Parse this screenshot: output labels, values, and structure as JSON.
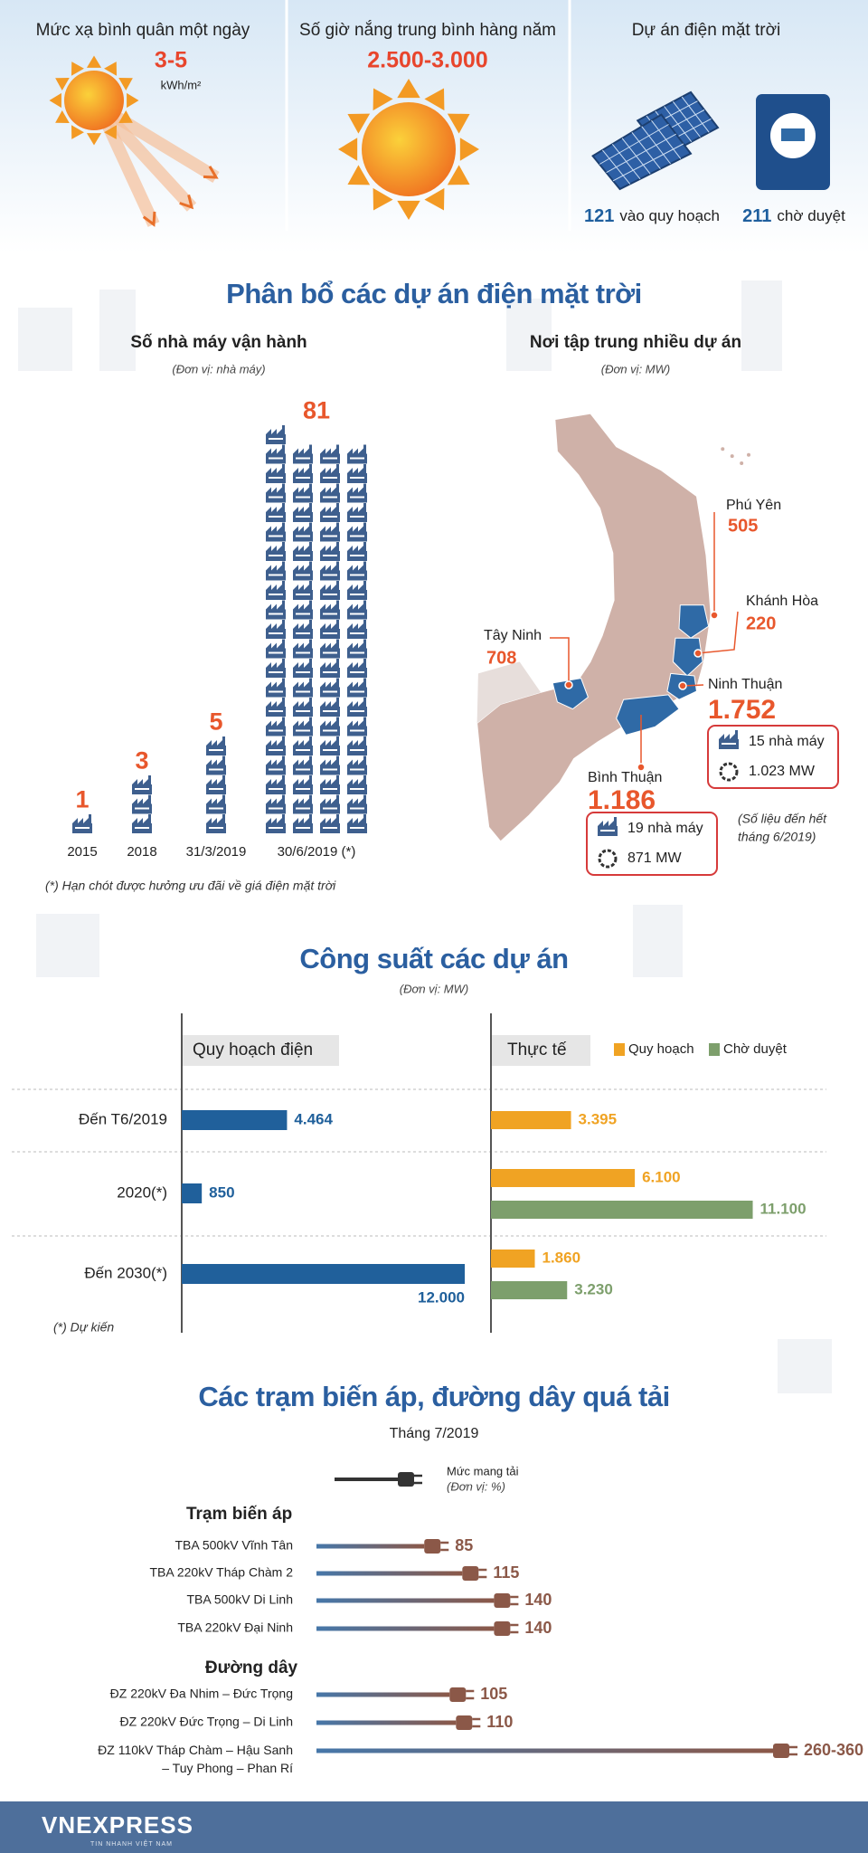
{
  "header": {
    "stats": [
      {
        "label": "Mức xạ bình quân một ngày",
        "value": "3-5",
        "unit": "kWh/m²"
      },
      {
        "label": "Số giờ nắng trung bình hàng năm",
        "value": "2.500-3.000"
      },
      {
        "label": "Dự án điện mặt trời",
        "projects": [
          {
            "count": 121,
            "label": "vào quy hoạch"
          },
          {
            "count": 211,
            "label": "chờ duyệt"
          }
        ]
      }
    ]
  },
  "section1": {
    "title": "Phân bổ các dự án điện mặt trời"
  },
  "map": {
    "title": "Nơi tập trung nhiều dự án",
    "subtitle": "(Đơn vị: MW)",
    "regions": [
      {
        "name": "Phú Yên",
        "value": "505"
      },
      {
        "name": "Khánh Hòa",
        "value": "220"
      },
      {
        "name": "Tây Ninh",
        "value": "708"
      },
      {
        "name": "Ninh Thuận",
        "value": "1.752",
        "details": [
          "15 nhà máy",
          "1.023 MW"
        ]
      },
      {
        "name": "Bình Thuận",
        "value": "1.186",
        "details": [
          "19 nhà máy",
          "871 MW"
        ]
      }
    ],
    "note": [
      "(Số liệu đến hết",
      "tháng 6/2019)"
    ],
    "highlight_color": "#2f6aa6",
    "land_color": "#cfb1a8"
  },
  "section2": {
    "title": "Công suất các dự án",
    "subtitle": "(Đơn vị: MW)",
    "footnote": "(*) Dự kiến"
  },
  "chart_data": [
    {
      "type": "pictogram",
      "title": "Số nhà máy vận hành",
      "subtitle": "(Đơn vị: nhà máy)",
      "categories": [
        "2015",
        "2018",
        "31/3/2019",
        "30/6/2019 (*)"
      ],
      "values": [
        1,
        3,
        5,
        81
      ],
      "color": "#3e5f8e",
      "label_color": "#e8572c",
      "footnote": "(*) Hạn chót được hưởng ưu đãi về giá điện mặt trời"
    },
    {
      "type": "bar",
      "orientation": "horizontal",
      "title": "Quy hoạch điện",
      "categories": [
        "Đến T6/2019",
        "2020(*)",
        "Đến 2030(*)"
      ],
      "values": [
        4464,
        850,
        12000
      ],
      "value_labels": [
        "4.464",
        "850",
        "12.000"
      ],
      "color": "#20609b"
    },
    {
      "type": "grouped-bar",
      "orientation": "horizontal",
      "title": "Thực tế",
      "series": [
        {
          "name": "Quy hoạch",
          "color": "#f0a323",
          "values": [
            3395,
            6100,
            1860
          ],
          "value_labels": [
            "3.395",
            "6.100",
            "1.860"
          ]
        },
        {
          "name": "Chờ duyệt",
          "color": "#7d9f6c",
          "values": [
            null,
            11100,
            3230
          ],
          "value_labels": [
            null,
            "11.100",
            "3.230"
          ]
        }
      ]
    },
    {
      "type": "plug-bar",
      "title": "Các trạm biến áp, đường dây quá tải",
      "subtitle": "Tháng 7/2019",
      "legend": [
        "Mức mang tải",
        "(Đơn vị: %)"
      ],
      "line_color": "#4677a9",
      "color": "#8b5848",
      "groups": [
        {
          "name": "Trạm biến áp",
          "categories": [
            "TBA 500kV Vĩnh Tân",
            "TBA 220kV Tháp Chàm 2",
            "TBA 500kV Di Linh",
            "TBA 220kV Đại Ninh"
          ],
          "values": [
            85,
            115,
            140,
            140
          ]
        },
        {
          "name": "Đường dây",
          "categories": [
            "ĐZ 220kV Đa Nhim – Đức Trọng",
            "ĐZ 220kV Đức Trọng – Di Linh",
            [
              "ĐZ 110kV Tháp Chàm – Hậu Sanh",
              "– Tuy Phong – Phan Rí"
            ]
          ],
          "values": [
            105,
            110,
            360
          ],
          "value_labels": [
            "105",
            "110",
            "260-360"
          ]
        }
      ]
    }
  ],
  "footer": {
    "brand": "VNEXPRESS",
    "tagline": "TIN NHANH VIỆT NAM"
  }
}
